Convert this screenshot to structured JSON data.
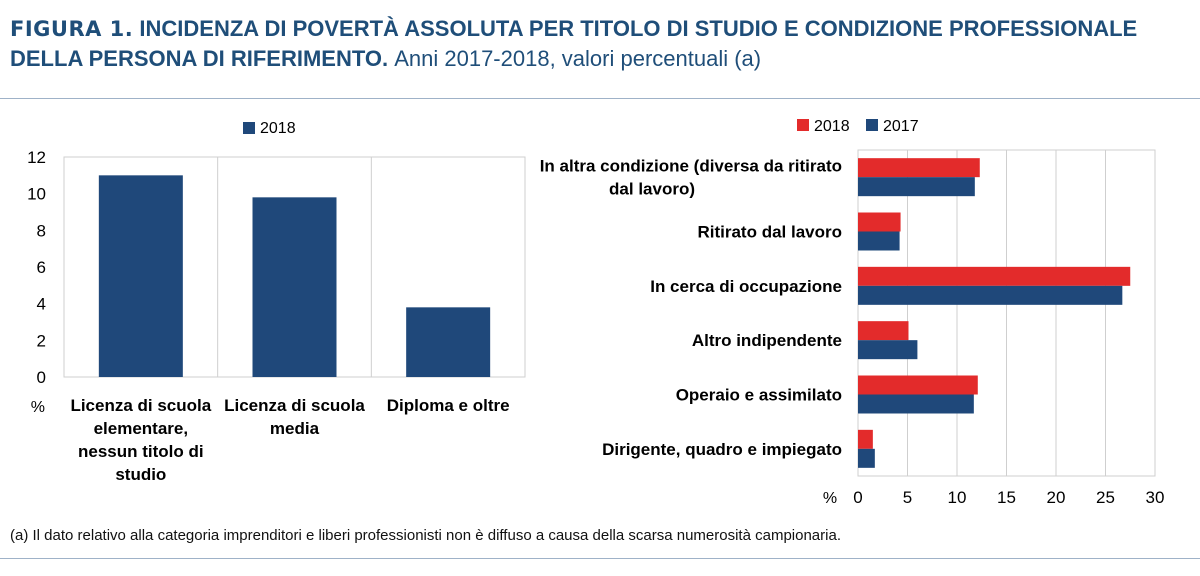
{
  "title": {
    "figure_label": "FIGURA 1.",
    "line1_rest": "INCIDENZA DI POVERTÀ ASSOLUTA PER TITOLO DI STUDIO E CONDIZIONE PROFESSIONALE",
    "line2_bold": "DELLA PERSONA DI RIFERIMENTO.",
    "line2_rest": "Anni 2017-2018, valori percentuali (a)"
  },
  "footnote": "(a)   Il dato relativo alla categoria imprenditori e liberi professionisti non è diffuso a causa della scarsa numerosità campionaria.",
  "colors": {
    "red": "#e32b2b",
    "blue": "#1f487a",
    "grid": "#cfcfcf"
  },
  "chart_data": [
    {
      "type": "bar",
      "unit_label": "%",
      "categories": [
        [
          "Licenza di scuola",
          "elementare,",
          "nessun titolo di",
          "studio"
        ],
        [
          "Licenza di scuola",
          "media"
        ],
        [
          "Diploma e oltre"
        ]
      ],
      "series": [
        {
          "name": "2018",
          "values": [
            11.0,
            9.8,
            3.8
          ]
        }
      ],
      "ylim": [
        0,
        12
      ],
      "yticks": [
        "0",
        "2",
        "4",
        "6",
        "8",
        "10",
        "12"
      ],
      "legend": "top-center"
    },
    {
      "type": "bar-horizontal",
      "unit_label": "%",
      "categories": [
        [
          "In altra condizione (diversa da ritirato",
          "dal lavoro)"
        ],
        [
          "Ritirato dal lavoro"
        ],
        [
          "In cerca di occupazione"
        ],
        [
          "Altro indipendente"
        ],
        [
          "Operaio e assimilato"
        ],
        [
          "Dirigente, quadro e impiegato"
        ]
      ],
      "series": [
        {
          "name": "2018",
          "values": [
            12.3,
            4.3,
            27.5,
            5.1,
            12.1,
            1.5
          ]
        },
        {
          "name": "2017",
          "values": [
            11.8,
            4.2,
            26.7,
            6.0,
            11.7,
            1.7
          ]
        }
      ],
      "xlim": [
        0,
        30
      ],
      "xticks": [
        "0",
        "5",
        "10",
        "15",
        "20",
        "25",
        "30"
      ],
      "legend": "top-center"
    }
  ]
}
